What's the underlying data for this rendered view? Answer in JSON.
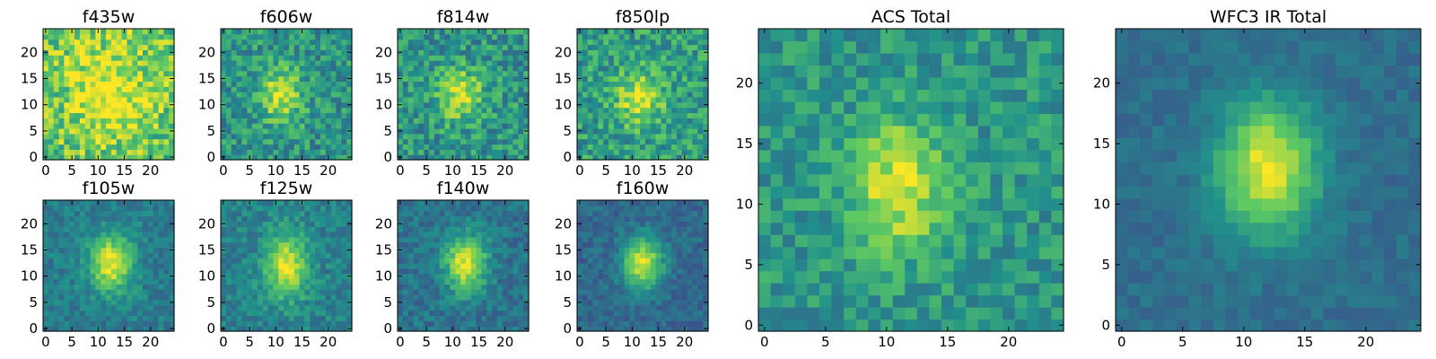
{
  "chart_data": [
    {
      "type": "heatmap",
      "title": "f435w",
      "xticks": [
        "0",
        "5",
        "10",
        "15",
        "20"
      ],
      "yticks": [
        "0",
        "5",
        "10",
        "15",
        "20"
      ],
      "xlim": [
        0,
        25
      ],
      "ylim": [
        0,
        25
      ],
      "peak": [
        12.0,
        12.5
      ],
      "spread": [
        5.5,
        6.5
      ],
      "peak_amp": 0.3,
      "baseline": 0.72,
      "noise": 0.45,
      "seed": 11
    },
    {
      "type": "heatmap",
      "title": "f606w",
      "xticks": [
        "0",
        "5",
        "10",
        "15",
        "20"
      ],
      "yticks": [
        "0",
        "5",
        "10",
        "15",
        "20"
      ],
      "xlim": [
        0,
        25
      ],
      "ylim": [
        0,
        25
      ],
      "peak": [
        11.0,
        12.0
      ],
      "spread": [
        2.8,
        3.6
      ],
      "peak_amp": 0.42,
      "baseline": 0.52,
      "noise": 0.36,
      "seed": 23
    },
    {
      "type": "heatmap",
      "title": "f814w",
      "xticks": [
        "0",
        "5",
        "10",
        "15",
        "20"
      ],
      "yticks": [
        "0",
        "5",
        "10",
        "15",
        "20"
      ],
      "xlim": [
        0,
        25
      ],
      "ylim": [
        0,
        25
      ],
      "peak": [
        11.5,
        12.0
      ],
      "spread": [
        3.0,
        3.5
      ],
      "peak_amp": 0.4,
      "baseline": 0.52,
      "noise": 0.38,
      "seed": 37
    },
    {
      "type": "heatmap",
      "title": "f850lp",
      "xticks": [
        "0",
        "5",
        "10",
        "15",
        "20"
      ],
      "yticks": [
        "0",
        "5",
        "10",
        "15",
        "20"
      ],
      "xlim": [
        0,
        25
      ],
      "ylim": [
        0,
        25
      ],
      "peak": [
        11.5,
        11.5
      ],
      "spread": [
        3.2,
        3.6
      ],
      "peak_amp": 0.38,
      "baseline": 0.55,
      "noise": 0.38,
      "seed": 41
    },
    {
      "type": "heatmap",
      "title": "f105w",
      "xticks": [
        "0",
        "5",
        "10",
        "15",
        "20"
      ],
      "yticks": [
        "0",
        "5",
        "10",
        "15",
        "20"
      ],
      "xlim": [
        0,
        25
      ],
      "ylim": [
        0,
        25
      ],
      "peak": [
        12.5,
        12.5
      ],
      "spread": [
        2.8,
        3.8
      ],
      "peak_amp": 0.55,
      "baseline": 0.42,
      "noise": 0.2,
      "seed": 53
    },
    {
      "type": "heatmap",
      "title": "f125w",
      "xticks": [
        "0",
        "5",
        "10",
        "15",
        "20"
      ],
      "yticks": [
        "0",
        "5",
        "10",
        "15",
        "20"
      ],
      "xlim": [
        0,
        25
      ],
      "ylim": [
        0,
        25
      ],
      "peak": [
        12.0,
        12.0
      ],
      "spread": [
        2.8,
        4.2
      ],
      "peak_amp": 0.52,
      "baseline": 0.44,
      "noise": 0.22,
      "seed": 67
    },
    {
      "type": "heatmap",
      "title": "f140w",
      "xticks": [
        "0",
        "5",
        "10",
        "15",
        "20"
      ],
      "yticks": [
        "0",
        "5",
        "10",
        "15",
        "20"
      ],
      "xlim": [
        0,
        25
      ],
      "ylim": [
        0,
        25
      ],
      "peak": [
        12.5,
        12.5
      ],
      "spread": [
        2.8,
        3.8
      ],
      "peak_amp": 0.58,
      "baseline": 0.38,
      "noise": 0.22,
      "seed": 71
    },
    {
      "type": "heatmap",
      "title": "f160w",
      "xticks": [
        "0",
        "5",
        "10",
        "15",
        "20"
      ],
      "yticks": [
        "0",
        "5",
        "10",
        "15",
        "20"
      ],
      "xlim": [
        0,
        25
      ],
      "ylim": [
        0,
        25
      ],
      "peak": [
        12.0,
        12.5
      ],
      "spread": [
        2.6,
        3.4
      ],
      "peak_amp": 0.62,
      "baseline": 0.34,
      "noise": 0.18,
      "seed": 83
    },
    {
      "type": "heatmap",
      "title": "ACS Total",
      "xticks": [
        "0",
        "5",
        "10",
        "15",
        "20"
      ],
      "yticks": [
        "0",
        "5",
        "10",
        "15",
        "20"
      ],
      "xlim": [
        0,
        25
      ],
      "ylim": [
        0,
        25
      ],
      "peak": [
        11.0,
        11.5
      ],
      "spread": [
        2.8,
        3.8
      ],
      "peak_amp": 0.42,
      "baseline": 0.52,
      "noise": 0.28,
      "seed": 97
    },
    {
      "type": "heatmap",
      "title": "WFC3 IR Total",
      "xticks": [
        "0",
        "5",
        "10",
        "15",
        "20"
      ],
      "yticks": [
        "0",
        "5",
        "10",
        "15",
        "20"
      ],
      "xlim": [
        0,
        25
      ],
      "ylim": [
        0,
        25
      ],
      "peak": [
        12.0,
        13.0
      ],
      "spread": [
        2.8,
        3.8
      ],
      "peak_amp": 0.62,
      "baseline": 0.36,
      "noise": 0.12,
      "seed": 101
    }
  ],
  "colormap": [
    "#440154",
    "#3b528b",
    "#21918c",
    "#5ec962",
    "#fde725"
  ]
}
